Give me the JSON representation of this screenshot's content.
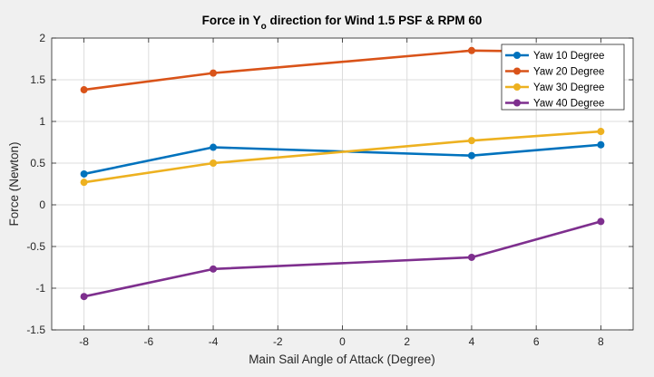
{
  "chart_data": {
    "type": "line",
    "title": "Force in Y",
    "title_subscript": "o",
    "title_rest": " direction for Wind 1.5 PSF & RPM 60",
    "xlabel": "Main Sail Angle of Attack (Degree)",
    "ylabel": "Force (Newton)",
    "xlim": [
      -9,
      9
    ],
    "ylim": [
      -1.5,
      2
    ],
    "xticks": [
      -8,
      -6,
      -4,
      -2,
      0,
      2,
      4,
      6,
      8
    ],
    "yticks": [
      -1.5,
      -1,
      -0.5,
      0,
      0.5,
      1,
      1.5,
      2
    ],
    "ytick_labels": [
      "-1.5",
      "-1",
      "-0.5",
      "0",
      "0.5",
      "1",
      "1.5",
      "2"
    ],
    "grid": true,
    "legend_position": "top-right",
    "x": [
      -8,
      -4,
      4,
      8
    ],
    "series": [
      {
        "name": "Yaw 10 Degree",
        "color": "#0072bd",
        "values": [
          0.37,
          0.69,
          0.59,
          0.72
        ]
      },
      {
        "name": "Yaw 20 Degree",
        "color": "#d95319",
        "values": [
          1.38,
          1.58,
          1.85,
          1.83
        ]
      },
      {
        "name": "Yaw 30 Degree",
        "color": "#edb120",
        "values": [
          0.27,
          0.5,
          0.77,
          0.88
        ]
      },
      {
        "name": "Yaw 40 Degree",
        "color": "#7e2f8e",
        "values": [
          -1.1,
          -0.77,
          -0.63,
          -0.2
        ]
      }
    ]
  }
}
